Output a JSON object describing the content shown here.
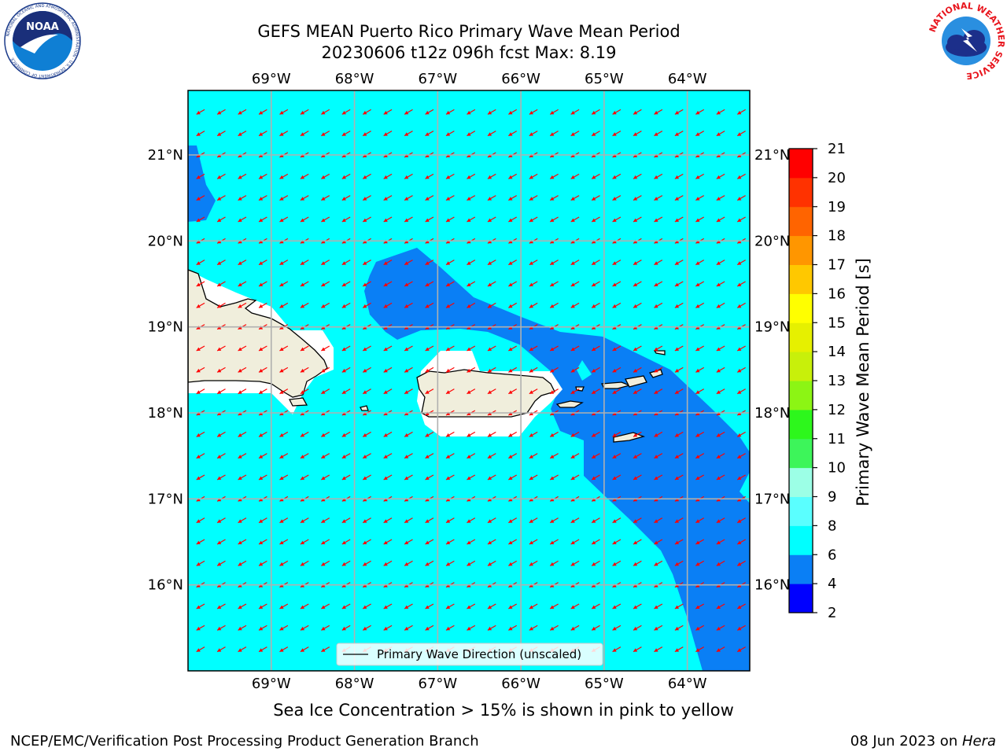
{
  "title": {
    "line1": "GEFS MEAN Puerto Rico Primary Wave Mean Period",
    "line2": "20230606 t12z 096h fcst   Max: 8.19"
  },
  "map": {
    "lon_range": [
      -70.0,
      -63.25
    ],
    "lat_range": [
      15.0,
      21.75
    ],
    "lon_ticks": [
      {
        "lon": -69,
        "label": "69°W"
      },
      {
        "lon": -68,
        "label": "68°W"
      },
      {
        "lon": -67,
        "label": "67°W"
      },
      {
        "lon": -66,
        "label": "66°W"
      },
      {
        "lon": -65,
        "label": "65°W"
      },
      {
        "lon": -64,
        "label": "64°W"
      }
    ],
    "lat_ticks": [
      {
        "lat": 21,
        "label": "21°N"
      },
      {
        "lat": 20,
        "label": "20°N"
      },
      {
        "lat": 19,
        "label": "19°N"
      },
      {
        "lat": 18,
        "label": "18°N"
      },
      {
        "lat": 17,
        "label": "17°N"
      },
      {
        "lat": 16,
        "label": "16°N"
      }
    ],
    "grid": true,
    "ocean_color": "#00ffff",
    "low_period_color": "#0a7ff5",
    "land_color": "#f0eedc",
    "land_mask_color": "#ffffff",
    "arrow_color": "#ff0000",
    "wave_direction_deg_towards": 240,
    "legend_label": "Primary Wave Direction (unscaled)"
  },
  "colorbar": {
    "label": "Primary Wave Mean Period [s]",
    "levels": [
      2,
      4,
      6,
      8,
      9,
      10,
      11,
      12,
      13,
      14,
      15,
      16,
      17,
      18,
      19,
      20,
      21
    ],
    "colors": [
      "#0000ff",
      "#0a7ff5",
      "#00ffff",
      "#5affff",
      "#9cffe6",
      "#3df55a",
      "#2df71c",
      "#8cf514",
      "#c8f00a",
      "#e6f000",
      "#ffff00",
      "#ffc800",
      "#ff9600",
      "#ff6400",
      "#ff3200",
      "#ff0000"
    ]
  },
  "footer": {
    "sea_ice_note": "Sea Ice Concentration > 15% is shown in pink to yellow",
    "credit_left": "NCEP/EMC/Verification Post Processing Product Generation Branch",
    "credit_date": "08 Jun 2023 on ",
    "credit_host": "Hera"
  },
  "logos": {
    "noaa_text": "NOAA",
    "noaa_ring_text": "NATIONAL OCEANIC AND ATMOSPHERIC ADMINISTRATION · U.S. DEPARTMENT OF COMMERCE",
    "nws_ring_text": "NATIONAL WEATHER SERVICE"
  }
}
